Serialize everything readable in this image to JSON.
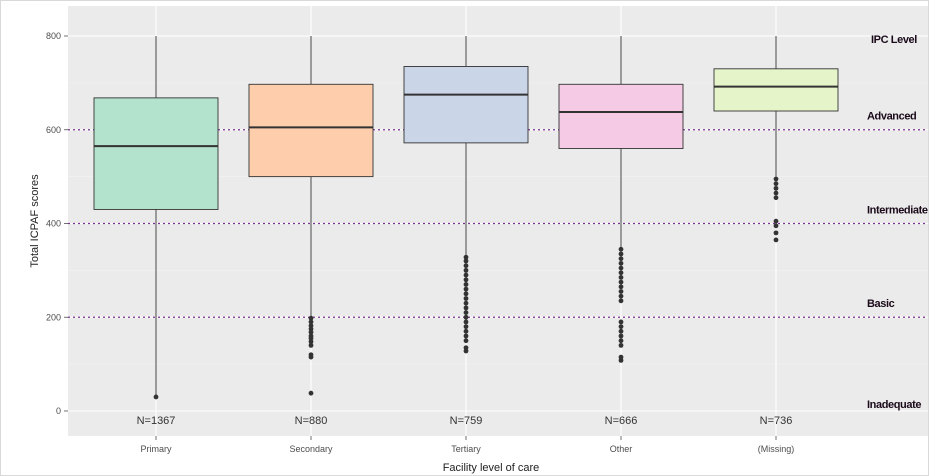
{
  "chart_data": {
    "type": "box",
    "xlabel": "Facility level of care",
    "ylabel": "Total ICPAF scores",
    "ylim": [
      -25,
      810
    ],
    "yticks": [
      0,
      200,
      400,
      600,
      800
    ],
    "grid": true,
    "categories": [
      "Primary",
      "Secondary",
      "Tertiary",
      "Other",
      "(Missing)"
    ],
    "boxes": [
      {
        "category": "Primary",
        "whisker_low": 30,
        "q1": 430,
        "median": 565,
        "q3": 668,
        "whisker_high": 800,
        "count_label": "N=1367",
        "color": "#b3e2cd",
        "outliers": [
          30
        ]
      },
      {
        "category": "Secondary",
        "whisker_low": 200,
        "q1": 500,
        "median": 605,
        "q3": 697,
        "whisker_high": 800,
        "count_label": "N=880",
        "color": "#fdcdac",
        "outliers": [
          38,
          115,
          120,
          140,
          148,
          155,
          160,
          168,
          175,
          182,
          190,
          198
        ]
      },
      {
        "category": "Tertiary",
        "whisker_low": 330,
        "q1": 572,
        "median": 675,
        "q3": 735,
        "whisker_high": 800,
        "count_label": "N=759",
        "color": "#cbd5e8",
        "outliers": [
          128,
          135,
          150,
          160,
          170,
          180,
          190,
          200,
          210,
          220,
          230,
          240,
          250,
          260,
          270,
          280,
          290,
          300,
          310,
          320,
          328
        ]
      },
      {
        "category": "Other",
        "whisker_low": 350,
        "q1": 560,
        "median": 638,
        "q3": 697,
        "whisker_high": 800,
        "count_label": "N=666",
        "color": "#f4cae4",
        "outliers": [
          108,
          115,
          140,
          150,
          160,
          170,
          180,
          190,
          235,
          245,
          255,
          265,
          275,
          285,
          295,
          305,
          315,
          325,
          335,
          345
        ]
      },
      {
        "category": "(Missing)",
        "whisker_low": 500,
        "q1": 640,
        "median": 692,
        "q3": 730,
        "whisker_high": 800,
        "count_label": "N=736",
        "color": "#e6f5c9",
        "outliers": [
          365,
          380,
          395,
          405,
          455,
          465,
          475,
          485,
          495
        ]
      }
    ],
    "reference_lines": [
      {
        "value": 600,
        "color": "#7b3294"
      },
      {
        "value": 400,
        "color": "#7b3294"
      },
      {
        "value": 200,
        "color": "#7b3294"
      }
    ],
    "legend_title": "IPC Level",
    "level_labels": [
      {
        "label": "Advanced",
        "value": 630
      },
      {
        "label": "Intermediate",
        "value": 430
      },
      {
        "label": "Basic",
        "value": 230
      },
      {
        "label": "Inadequate",
        "value": 15
      }
    ]
  }
}
